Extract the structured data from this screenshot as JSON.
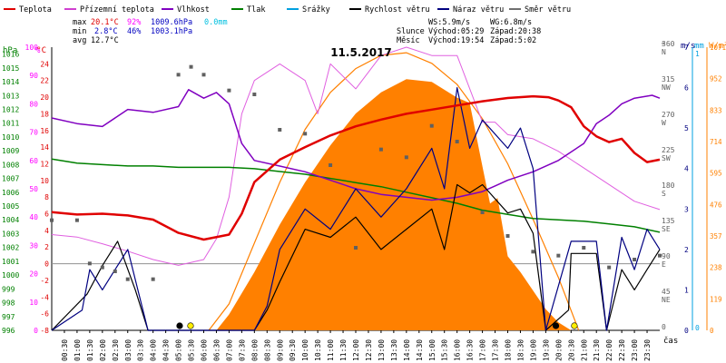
{
  "chart_data": {
    "type": "line",
    "title": "11.5.2017",
    "legend": [
      {
        "label": "Teplota",
        "color": "#e00000"
      },
      {
        "label": "Přízemní teplota",
        "color": "#d040d0"
      },
      {
        "label": "Vlhkost",
        "color": "#8000c0"
      },
      {
        "label": "Tlak",
        "color": "#008000"
      },
      {
        "label": "Srážky",
        "color": "#00a0e0"
      },
      {
        "label": "Rychlost větru",
        "color": "#000000"
      },
      {
        "label": "Náraz větru",
        "color": "#000080"
      },
      {
        "label": "Směr větru",
        "color": "#707070"
      }
    ],
    "stats": {
      "max": {
        "label": "max",
        "temp": "20.1°C",
        "hum": "92%",
        "press": "1009.6hPa",
        "rain": "0.0mm"
      },
      "min": {
        "label": "min",
        "temp": "2.8°C",
        "hum": "46%",
        "press": "1003.1hPa"
      },
      "avg": {
        "label": "avg",
        "temp": "12.7°C"
      }
    },
    "info": {
      "ws": "WS:5.9m/s",
      "wg": "WG:6.8m/s",
      "sun_label": "Slunce",
      "sunrise": "Východ:05:29",
      "sunset": "Západ:20:38",
      "moon_label": "Měsíc",
      "moonrise": "Východ:19:54",
      "moonset": "Západ:5:02"
    },
    "axes": {
      "units": {
        "press": "hPa",
        "hum": "%",
        "temp": "°C",
        "dir": "°",
        "wind": "m/s",
        "rain": "mm",
        "solar": "W/m²"
      },
      "press_ticks": [
        "1016",
        "1015",
        "1014",
        "1013",
        "1012",
        "1011",
        "1010",
        "1009",
        "1008",
        "1007",
        "1006",
        "1005",
        "1004",
        "1003",
        "1002",
        "1001",
        "1000",
        "999",
        "998",
        "997",
        "996"
      ],
      "hum_ticks": [
        "100",
        "90",
        "80",
        "70",
        "60",
        "50",
        "40",
        "30",
        "20",
        "10",
        "0"
      ],
      "temp_ticks": [
        "24",
        "22",
        "20",
        "18",
        "16",
        "14",
        "12",
        "10",
        "8",
        "6",
        "4",
        "2",
        "0",
        "-2",
        "-4",
        "-6",
        "-8"
      ],
      "dir_ticks": [
        {
          "deg": "360",
          "c": "N"
        },
        {
          "deg": "315",
          "c": "NW"
        },
        {
          "deg": "270",
          "c": "W"
        },
        {
          "deg": "225",
          "c": "SW"
        },
        {
          "deg": "180",
          "c": "S"
        },
        {
          "deg": "135",
          "c": "SE"
        },
        {
          "deg": "90",
          "c": "E"
        },
        {
          "deg": "45",
          "c": "NE"
        },
        {
          "deg": "0",
          "c": ""
        }
      ],
      "wind_ticks": [
        "7",
        "6",
        "5",
        "4",
        "3",
        "2",
        "1",
        "0"
      ],
      "rain_ticks": [
        "1",
        "0"
      ],
      "solar_ticks": [
        "1071",
        "952",
        "833",
        "714",
        "595",
        "476",
        "357",
        "238",
        "119",
        "0"
      ],
      "time_ticks": [
        "00:30",
        "01:00",
        "01:30",
        "02:00",
        "02:30",
        "03:00",
        "03:30",
        "04:00",
        "04:30",
        "05:00",
        "05:30",
        "06:00",
        "06:30",
        "07:00",
        "07:30",
        "08:00",
        "08:30",
        "09:00",
        "09:30",
        "10:00",
        "10:30",
        "11:00",
        "11:30",
        "12:00",
        "12:30",
        "13:00",
        "13:30",
        "14:00",
        "14:30",
        "15:00",
        "15:30",
        "16:00",
        "16:30",
        "17:00",
        "17:30",
        "18:00",
        "18:30",
        "19:00",
        "19:30",
        "20:00",
        "20:30",
        "21:00",
        "21:30",
        "22:00",
        "22:30",
        "23:00",
        "23:30"
      ],
      "time_label": "čas",
      "hum_range": [
        0,
        100
      ],
      "temp_range": [
        -8,
        26
      ],
      "press_range": [
        996,
        1016.5
      ],
      "dir_range": [
        0,
        360
      ],
      "wind_range": [
        0,
        7
      ],
      "solar_range": [
        0,
        1071
      ]
    },
    "series": {
      "temperature": [
        [
          0,
          6.2
        ],
        [
          1,
          5.9
        ],
        [
          2,
          6
        ],
        [
          3,
          5.8
        ],
        [
          4,
          5.3
        ],
        [
          5,
          3.7
        ],
        [
          6,
          2.9
        ],
        [
          7,
          3.5
        ],
        [
          7.5,
          6
        ],
        [
          8,
          9.8
        ],
        [
          9,
          12.5
        ],
        [
          10,
          14
        ],
        [
          11,
          15.4
        ],
        [
          12,
          16.5
        ],
        [
          13,
          17.3
        ],
        [
          14,
          18
        ],
        [
          15,
          18.5
        ],
        [
          16,
          19
        ],
        [
          17,
          19.5
        ],
        [
          18,
          19.9
        ],
        [
          19,
          20.1
        ],
        [
          19.6,
          20
        ],
        [
          20,
          19.6
        ],
        [
          20.5,
          18.8
        ],
        [
          21,
          16.5
        ],
        [
          21.5,
          15.3
        ],
        [
          22,
          14.6
        ],
        [
          22.5,
          15
        ],
        [
          23,
          13.3
        ],
        [
          23.5,
          12.2
        ],
        [
          24,
          12.5
        ]
      ],
      "ground_temperature": [
        [
          0,
          3.5
        ],
        [
          1,
          3.2
        ],
        [
          2,
          2.4
        ],
        [
          3,
          1.5
        ],
        [
          4,
          0.5
        ],
        [
          5,
          -0.2
        ],
        [
          6,
          0.5
        ],
        [
          6.5,
          3
        ],
        [
          7,
          8
        ],
        [
          7.5,
          18
        ],
        [
          8,
          22
        ],
        [
          9,
          24
        ],
        [
          10,
          22
        ],
        [
          10.5,
          18
        ],
        [
          11,
          24
        ],
        [
          12,
          21
        ],
        [
          13,
          25
        ],
        [
          14,
          26
        ],
        [
          15,
          25
        ],
        [
          16,
          25
        ],
        [
          17,
          17
        ],
        [
          17.5,
          17
        ],
        [
          18,
          15.5
        ],
        [
          19,
          15
        ],
        [
          20,
          13.5
        ],
        [
          21,
          11.5
        ],
        [
          22,
          9.5
        ],
        [
          23,
          7.5
        ],
        [
          24,
          6.5
        ]
      ],
      "humidity": [
        [
          0,
          75
        ],
        [
          1,
          73
        ],
        [
          2,
          72
        ],
        [
          3,
          78
        ],
        [
          4,
          77
        ],
        [
          5,
          79
        ],
        [
          5.4,
          85
        ],
        [
          6,
          82
        ],
        [
          6.5,
          84
        ],
        [
          7,
          80
        ],
        [
          7.5,
          66
        ],
        [
          8,
          60
        ],
        [
          9,
          58
        ],
        [
          10,
          56
        ],
        [
          11,
          53
        ],
        [
          12,
          50
        ],
        [
          13,
          48
        ],
        [
          14,
          47
        ],
        [
          15,
          46
        ],
        [
          16,
          47
        ],
        [
          17,
          49
        ],
        [
          17.5,
          51
        ],
        [
          18,
          53
        ],
        [
          19,
          56
        ],
        [
          20,
          60
        ],
        [
          21,
          66
        ],
        [
          21.5,
          73
        ],
        [
          22,
          76
        ],
        [
          22.5,
          80
        ],
        [
          23,
          82
        ],
        [
          23.7,
          83
        ],
        [
          24,
          82
        ]
      ],
      "pressure": [
        [
          0,
          1008.4
        ],
        [
          1,
          1008.1
        ],
        [
          2,
          1008
        ],
        [
          3,
          1007.9
        ],
        [
          4,
          1007.9
        ],
        [
          5,
          1007.8
        ],
        [
          6,
          1007.8
        ],
        [
          7,
          1007.8
        ],
        [
          8,
          1007.7
        ],
        [
          9,
          1007.5
        ],
        [
          10,
          1007.3
        ],
        [
          11,
          1007
        ],
        [
          12,
          1006.7
        ],
        [
          13,
          1006.4
        ],
        [
          14,
          1006
        ],
        [
          15,
          1005.6
        ],
        [
          16,
          1005.2
        ],
        [
          17,
          1004.7
        ],
        [
          18,
          1004.4
        ],
        [
          19,
          1004.1
        ],
        [
          20,
          1004
        ],
        [
          21,
          1003.9
        ],
        [
          22,
          1003.7
        ],
        [
          23,
          1003.5
        ],
        [
          24,
          1003.1
        ]
      ],
      "wind_speed": [
        [
          0,
          0
        ],
        [
          1.4,
          0.9
        ],
        [
          2,
          1.6
        ],
        [
          2.6,
          2.2
        ],
        [
          3.3,
          1
        ],
        [
          3.8,
          0
        ],
        [
          8,
          0
        ],
        [
          8.5,
          0.5
        ],
        [
          9,
          1.2
        ],
        [
          10,
          2.5
        ],
        [
          11,
          2.3
        ],
        [
          12,
          2.8
        ],
        [
          13,
          2
        ],
        [
          14,
          2.5
        ],
        [
          15,
          3
        ],
        [
          15.5,
          2
        ],
        [
          16,
          3.6
        ],
        [
          16.5,
          3.4
        ],
        [
          17,
          3.6
        ],
        [
          18,
          2.9
        ],
        [
          18.5,
          3
        ],
        [
          19,
          2.4
        ],
        [
          19.5,
          0
        ],
        [
          20.4,
          0.5
        ],
        [
          20.5,
          1.9
        ],
        [
          21.5,
          1.9
        ],
        [
          21.9,
          0
        ],
        [
          22.5,
          1.5
        ],
        [
          23,
          1
        ],
        [
          23.5,
          1.5
        ],
        [
          24,
          2
        ]
      ],
      "wind_gust": [
        [
          0,
          0
        ],
        [
          1.2,
          0.5
        ],
        [
          1.5,
          1.5
        ],
        [
          2,
          1
        ],
        [
          2.5,
          1.5
        ],
        [
          3,
          2
        ],
        [
          3.4,
          1
        ],
        [
          3.8,
          0
        ],
        [
          8,
          0
        ],
        [
          8.5,
          0.6
        ],
        [
          9,
          2
        ],
        [
          10,
          3
        ],
        [
          11,
          2.5
        ],
        [
          12,
          3.5
        ],
        [
          13,
          2.8
        ],
        [
          14,
          3.5
        ],
        [
          15,
          4.5
        ],
        [
          15.5,
          3.5
        ],
        [
          16,
          6
        ],
        [
          16.5,
          4.5
        ],
        [
          17,
          5.2
        ],
        [
          18,
          4.5
        ],
        [
          18.5,
          5
        ],
        [
          19,
          4
        ],
        [
          19.5,
          0
        ],
        [
          20.5,
          2.2
        ],
        [
          21.5,
          2.2
        ],
        [
          21.9,
          0
        ],
        [
          22.5,
          2.3
        ],
        [
          23,
          1.5
        ],
        [
          23.5,
          2.5
        ],
        [
          24,
          2
        ]
      ],
      "wind_direction": [
        [
          0,
          140
        ],
        [
          1,
          140
        ],
        [
          1.5,
          85
        ],
        [
          2,
          80
        ],
        [
          2.5,
          75
        ],
        [
          3,
          65
        ],
        [
          4,
          65
        ],
        [
          5,
          325
        ],
        [
          5.5,
          335
        ],
        [
          6,
          325
        ],
        [
          7,
          305
        ],
        [
          8,
          300
        ],
        [
          9,
          255
        ],
        [
          10,
          250
        ],
        [
          11,
          210
        ],
        [
          12,
          105
        ],
        [
          13,
          230
        ],
        [
          14,
          220
        ],
        [
          15,
          260
        ],
        [
          16,
          240
        ],
        [
          17,
          150
        ],
        [
          18,
          120
        ],
        [
          19,
          100
        ],
        [
          20,
          95
        ],
        [
          21,
          105
        ],
        [
          22,
          80
        ],
        [
          23,
          90
        ],
        [
          24,
          95
        ]
      ],
      "solar": [
        [
          0,
          0
        ],
        [
          6.5,
          0
        ],
        [
          7,
          60
        ],
        [
          8,
          220
        ],
        [
          9,
          400
        ],
        [
          10,
          560
        ],
        [
          11,
          700
        ],
        [
          12,
          820
        ],
        [
          13,
          900
        ],
        [
          14,
          950
        ],
        [
          15,
          940
        ],
        [
          16,
          880
        ],
        [
          16.5,
          860
        ],
        [
          17,
          620
        ],
        [
          17.3,
          480
        ],
        [
          17.6,
          500
        ],
        [
          18,
          280
        ],
        [
          18.5,
          220
        ],
        [
          19,
          150
        ],
        [
          19.5,
          80
        ],
        [
          20,
          30
        ],
        [
          20.5,
          0
        ],
        [
          24,
          0
        ]
      ],
      "solar_theoretical": [
        [
          6.2,
          0
        ],
        [
          7,
          100
        ],
        [
          8,
          330
        ],
        [
          9,
          560
        ],
        [
          10,
          760
        ],
        [
          11,
          900
        ],
        [
          12,
          990
        ],
        [
          13,
          1040
        ],
        [
          14,
          1050
        ],
        [
          15,
          1010
        ],
        [
          16,
          930
        ],
        [
          17,
          800
        ],
        [
          18,
          630
        ],
        [
          19,
          420
        ],
        [
          20,
          200
        ],
        [
          20.8,
          0
        ]
      ]
    },
    "markers": [
      {
        "type": "moonset",
        "time": 5.05,
        "color": "#000000"
      },
      {
        "type": "sunrise",
        "time": 5.48,
        "color": "#ffee00"
      },
      {
        "type": "moonrise",
        "time": 19.9,
        "color": "#000000"
      },
      {
        "type": "sunset",
        "time": 20.63,
        "color": "#ffee00"
      }
    ]
  }
}
